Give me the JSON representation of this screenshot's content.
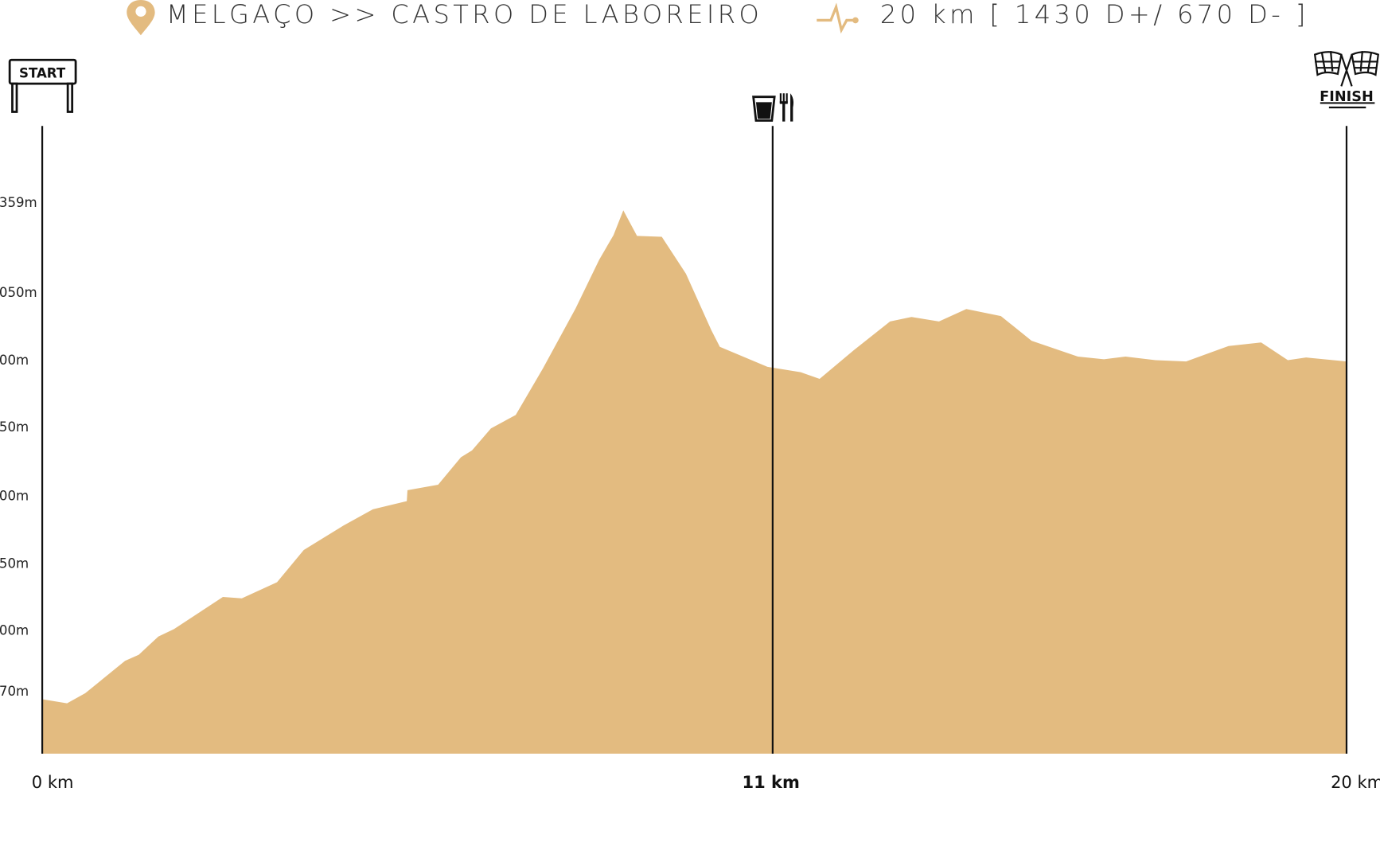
{
  "header": {
    "route": "MELGAÇO >> CASTRO DE LABOREIRO",
    "stats": "20 km [ 1430 D+/ 670 D- ]"
  },
  "icons": {
    "start_label": "START",
    "finish_label": "FINISH"
  },
  "chart_data": {
    "type": "area",
    "color": "#e3bb80",
    "x": [
      0,
      0.38,
      0.66,
      1.27,
      1.48,
      1.78,
      2.02,
      2.77,
      3.06,
      3.6,
      4.01,
      4.62,
      5.07,
      5.59,
      5.6,
      6.07,
      6.42,
      6.59,
      6.88,
      7.26,
      7.68,
      8.18,
      8.54,
      8.76,
      8.91,
      9.12,
      9.5,
      9.87,
      10.26,
      10.39,
      11.12,
      11.63,
      11.92,
      12.44,
      13.0,
      13.33,
      13.75,
      14.17,
      14.7,
      15.17,
      15.88,
      16.28,
      16.61,
      17.07,
      17.54,
      18.19,
      18.69,
      19.1,
      19.38,
      20
    ],
    "values": [
      166,
      164,
      169,
      185,
      188,
      197,
      201,
      225,
      224,
      236,
      260,
      278,
      290,
      296,
      304,
      308,
      328,
      333,
      349,
      359,
      394,
      898,
      1162,
      1247,
      1332,
      1244,
      1241,
      1114,
      687,
      527,
      395,
      391,
      386,
      493,
      771,
      814,
      771,
      890,
      822,
      586,
      434,
      408,
      434,
      400,
      399,
      535,
      569,
      400,
      425,
      399
    ],
    "xlim": [
      0,
      20
    ],
    "xticks": [
      {
        "value": 0,
        "label": "0 km"
      },
      {
        "value": 11.2,
        "label": "11 km"
      },
      {
        "value": 20,
        "label": "20 km"
      }
    ],
    "ylim": [
      139,
      1623
    ],
    "yticks": [
      {
        "value": 170,
        "label": "70m"
      },
      {
        "value": 200,
        "label": "00m"
      },
      {
        "value": 250,
        "label": "50m"
      },
      {
        "value": 300,
        "label": "00m"
      },
      {
        "value": 350,
        "label": "50m"
      },
      {
        "value": 400,
        "label": "00m"
      },
      {
        "value": 1050,
        "label": "050m"
      },
      {
        "value": 1359,
        "label": "359m"
      }
    ]
  }
}
